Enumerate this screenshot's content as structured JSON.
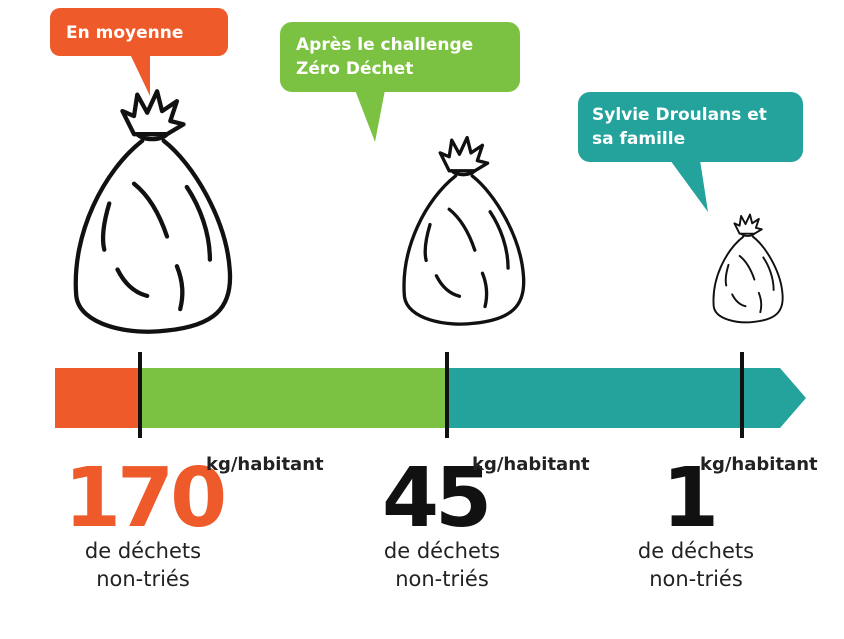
{
  "items": [
    {
      "bubble": [
        "En moyenne"
      ],
      "value": 170,
      "unit": "kg/habitant",
      "description": [
        "de déchets",
        "non-triés"
      ]
    },
    {
      "bubble": [
        "Après le challenge",
        "Zéro Déchet"
      ],
      "value": 45,
      "unit": "kg/habitant",
      "description": [
        "de déchets",
        "non-triés"
      ]
    },
    {
      "bubble": [
        "Sylvie Droulans et",
        "sa famille"
      ],
      "value": 1,
      "unit": "kg/habitant",
      "description": [
        "de déchets",
        "non-triés"
      ]
    }
  ]
}
